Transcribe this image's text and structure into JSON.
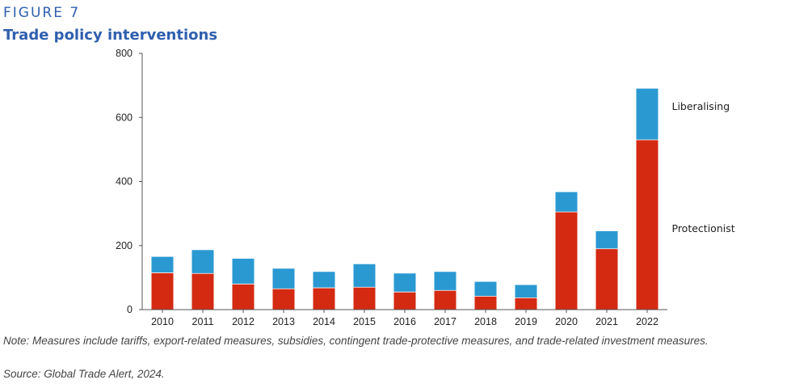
{
  "figure": {
    "label": "FIGURE 7",
    "title": "Trade policy interventions",
    "note": "Note: Measures include tariffs, export-related measures, subsidies, contingent trade-protective measures, and trade-related investment measures.",
    "source": "Source: Global Trade Alert, 2024."
  },
  "chart_data": {
    "type": "bar",
    "stacked": true,
    "title": "Trade policy interventions",
    "xlabel": "",
    "ylabel": "",
    "ylim": [
      0,
      800
    ],
    "yticks": [
      0,
      200,
      400,
      600,
      800
    ],
    "categories": [
      "2010",
      "2011",
      "2012",
      "2013",
      "2014",
      "2015",
      "2016",
      "2017",
      "2018",
      "2019",
      "2020",
      "2021",
      "2022"
    ],
    "series": [
      {
        "name": "Protectionist",
        "color": "#d42a12",
        "values": [
          115,
          113,
          80,
          65,
          68,
          70,
          55,
          60,
          42,
          37,
          305,
          190,
          530
        ]
      },
      {
        "name": "Liberalising",
        "color": "#2a99d2",
        "values": [
          50,
          73,
          79,
          63,
          50,
          72,
          58,
          58,
          45,
          40,
          62,
          55,
          160
        ]
      }
    ],
    "grid": false,
    "legend": "right, labels beside the 2022 bar segments"
  }
}
